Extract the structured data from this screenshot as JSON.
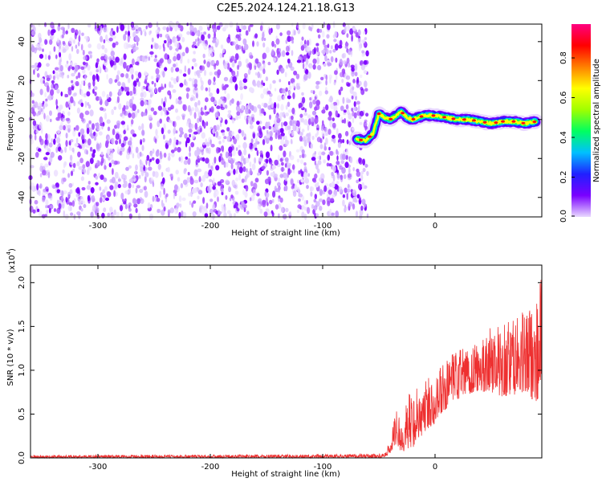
{
  "title": "C2E5.2024.124.21.18.G13",
  "chart_data": [
    {
      "type": "heatmap",
      "xlabel": "Height of straight line (km)",
      "ylabel": "Frequency (Hz)",
      "xlim": [
        -360,
        95
      ],
      "ylim": [
        -50,
        49
      ],
      "xticks": [
        -300,
        -200,
        -100,
        0
      ],
      "xtick_labels": [
        "-300",
        "-200",
        "-100",
        "0"
      ],
      "yticks": [
        -40,
        -20,
        0,
        20,
        40
      ],
      "ytick_labels": [
        "-40",
        "-20",
        "0",
        "20",
        "40"
      ],
      "noise_region_x": [
        -360,
        -60
      ],
      "noise_colors": [
        "#7c00ff",
        "#a64dff",
        "#c69aff",
        "#dcc4ff",
        "#ece0ff"
      ],
      "colorbar": {
        "label": "Normalized spectral amplitude",
        "range": [
          0,
          0.97
        ],
        "ticks": [
          0.0,
          0.2,
          0.4,
          0.6,
          0.8
        ],
        "tick_labels": [
          "0.0",
          "0.2",
          "0.4",
          "0.6",
          "0.8"
        ],
        "colors": [
          "#e8d8ff",
          "#7a00ff",
          "#2020ff",
          "#00c0ff",
          "#00ff60",
          "#a0ff00",
          "#ffff00",
          "#ff8000",
          "#ff0000",
          "#ff0080"
        ]
      },
      "ridge": {
        "description_points_x": [
          -70,
          -62,
          -55,
          -50,
          -45,
          -40,
          -35,
          -30,
          -25,
          -20,
          -15,
          -10,
          0,
          10,
          20,
          30,
          40,
          50,
          60,
          70,
          80,
          90
        ],
        "frequency_hz": [
          -10,
          -11,
          -7,
          3,
          1,
          0,
          2,
          4,
          1,
          0,
          1,
          2,
          2,
          1,
          0,
          0,
          -1,
          -2,
          -1,
          -1,
          -2,
          -1
        ]
      }
    },
    {
      "type": "line",
      "xlabel": "Height of straight line (km)",
      "ylabel": "SNR (10 * v/v)",
      "y_multiplier_label": "(x10",
      "y_multiplier_exp": "4",
      "y_multiplier_close": ")",
      "xlim": [
        -360,
        95
      ],
      "ylim": [
        0,
        2.2
      ],
      "xticks": [
        -300,
        -200,
        -100,
        0
      ],
      "xtick_labels": [
        "-300",
        "-200",
        "-100",
        "0"
      ],
      "yticks": [
        0.0,
        0.5,
        1.0,
        1.5,
        2.0
      ],
      "ytick_labels": [
        "0.0",
        "0.5",
        "1.0",
        "1.5",
        "2.0"
      ],
      "color": "#ee3030",
      "envelope": {
        "x": [
          -360,
          -100,
          -45,
          -40,
          -35,
          -30,
          -25,
          -20,
          -15,
          -10,
          0,
          10,
          20,
          30,
          40,
          50,
          60,
          70,
          80,
          90,
          95
        ],
        "low": [
          0.0,
          0.0,
          0.0,
          0.05,
          0.15,
          0.05,
          0.1,
          0.1,
          0.2,
          0.25,
          0.4,
          0.55,
          0.65,
          0.7,
          0.75,
          0.75,
          0.7,
          0.7,
          0.7,
          0.65,
          0.7
        ],
        "high": [
          0.03,
          0.04,
          0.05,
          0.2,
          0.55,
          0.45,
          0.7,
          0.8,
          0.85,
          0.9,
          1.0,
          1.1,
          1.25,
          1.3,
          1.35,
          1.5,
          1.55,
          1.6,
          1.7,
          1.8,
          2.15
        ]
      }
    }
  ]
}
